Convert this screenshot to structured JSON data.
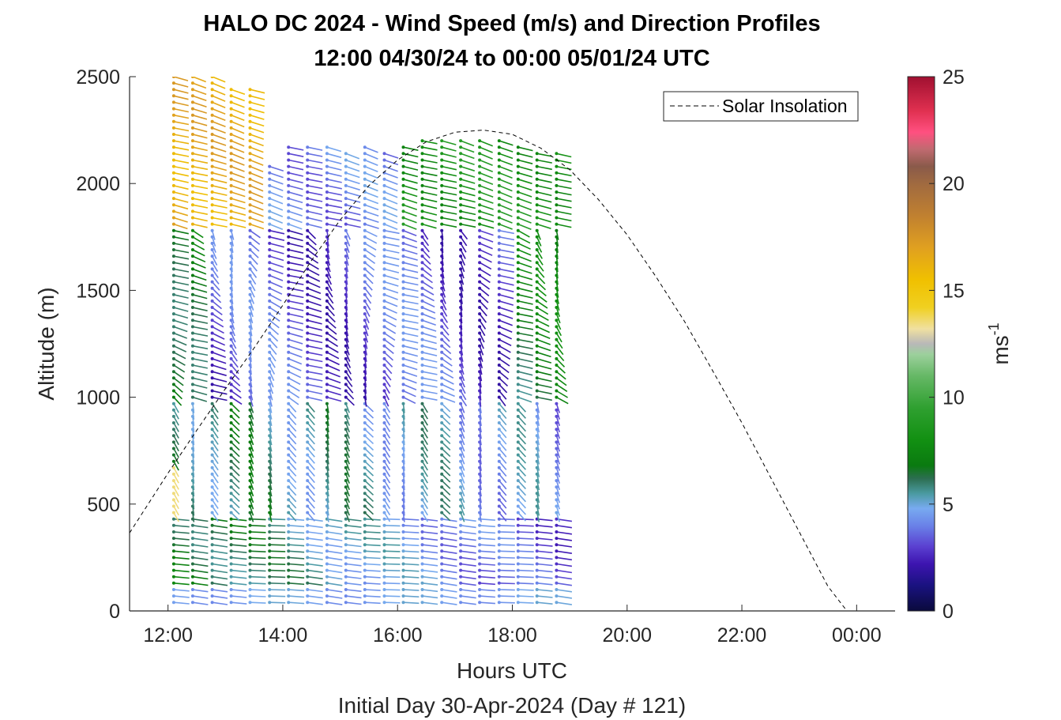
{
  "chart_data": {
    "type": "quiver",
    "title": "HALO DC 2024 - Wind Speed (m/s) and Direction Profiles",
    "subtitle": "12:00 04/30/24 to 00:00 05/01/24  UTC",
    "xlabel": "Hours UTC",
    "xlabel2": "Initial Day 30-Apr-2024 (Day # 121)",
    "ylabel": "Altitude (m)",
    "xlim": [
      11.33,
      24.67
    ],
    "ylim": [
      0,
      2500
    ],
    "x_ticks": [
      12,
      14,
      16,
      18,
      20,
      22,
      24
    ],
    "x_tick_labels": [
      "12:00",
      "14:00",
      "16:00",
      "18:00",
      "20:00",
      "22:00",
      "00:00"
    ],
    "y_ticks": [
      0,
      500,
      1000,
      1500,
      2000,
      2500
    ],
    "y_tick_labels": [
      "0",
      "500",
      "1000",
      "1500",
      "2000",
      "2500"
    ],
    "colorbar": {
      "label_base": "ms",
      "label_exp": "-1",
      "range": [
        0,
        25
      ],
      "ticks": [
        0,
        5,
        10,
        15,
        20,
        25
      ],
      "tick_labels": [
        "0",
        "5",
        "10",
        "15",
        "20",
        "25"
      ],
      "colors": [
        [
          0,
          "#0a0a3c"
        ],
        [
          1.2,
          "#1a1280"
        ],
        [
          2.2,
          "#3d14b0"
        ],
        [
          3.0,
          "#5a3fd0"
        ],
        [
          4.0,
          "#6a82e8"
        ],
        [
          4.8,
          "#78aaf0"
        ],
        [
          5.5,
          "#4a9aa0"
        ],
        [
          6.2,
          "#2c6e50"
        ],
        [
          6.8,
          "#0a7a10"
        ],
        [
          8.0,
          "#129012"
        ],
        [
          9.5,
          "#2fa030"
        ],
        [
          11.0,
          "#66b866"
        ],
        [
          12.0,
          "#9cd09c"
        ],
        [
          12.5,
          "#b8b8b8"
        ],
        [
          13.2,
          "#f0e0a0"
        ],
        [
          14.2,
          "#f0d020"
        ],
        [
          15.5,
          "#f0c000"
        ],
        [
          17.0,
          "#e0a020"
        ],
        [
          18.5,
          "#c08030"
        ],
        [
          20.0,
          "#a06a40"
        ],
        [
          20.8,
          "#8a5a4a"
        ],
        [
          21.6,
          "#c06a70"
        ],
        [
          22.4,
          "#ff5080"
        ],
        [
          23.4,
          "#e03050"
        ],
        [
          25.0,
          "#a01030"
        ]
      ]
    },
    "legend": {
      "label": "Solar Insolation",
      "placement": "top-right",
      "style": "dashed"
    },
    "solar_insolation": {
      "x": [
        11.33,
        11.75,
        12.0,
        12.5,
        13.0,
        13.5,
        14.0,
        14.5,
        15.0,
        15.5,
        16.0,
        16.5,
        17.0,
        17.5,
        18.0,
        18.5,
        19.0,
        19.5,
        20.0,
        20.5,
        21.0,
        21.5,
        22.0,
        22.5,
        23.0,
        23.5,
        23.83,
        24.0,
        24.67
      ],
      "y": [
        365,
        540,
        645,
        845,
        1040,
        1230,
        1430,
        1640,
        1830,
        1990,
        2110,
        2195,
        2240,
        2250,
        2230,
        2165,
        2065,
        1925,
        1760,
        1565,
        1355,
        1120,
        880,
        625,
        370,
        115,
        0,
        0,
        0
      ]
    },
    "wind_profiles": {
      "description_note": "",
      "times": [
        12.1,
        12.43,
        12.77,
        13.1,
        13.43,
        13.77,
        14.1,
        14.43,
        14.77,
        15.1,
        15.43,
        15.77,
        16.1,
        16.43,
        16.77,
        17.1,
        17.43,
        17.77,
        18.1,
        18.43,
        18.77
      ],
      "top_altitudes": [
        2500,
        2500,
        2500,
        2460,
        2460,
        2080,
        2180,
        2180,
        2180,
        2150,
        2180,
        2160,
        2180,
        2220,
        2220,
        2200,
        2200,
        2200,
        2180,
        2160,
        2150
      ],
      "altitude_step": 30,
      "bottom_altitude": 40
    }
  }
}
